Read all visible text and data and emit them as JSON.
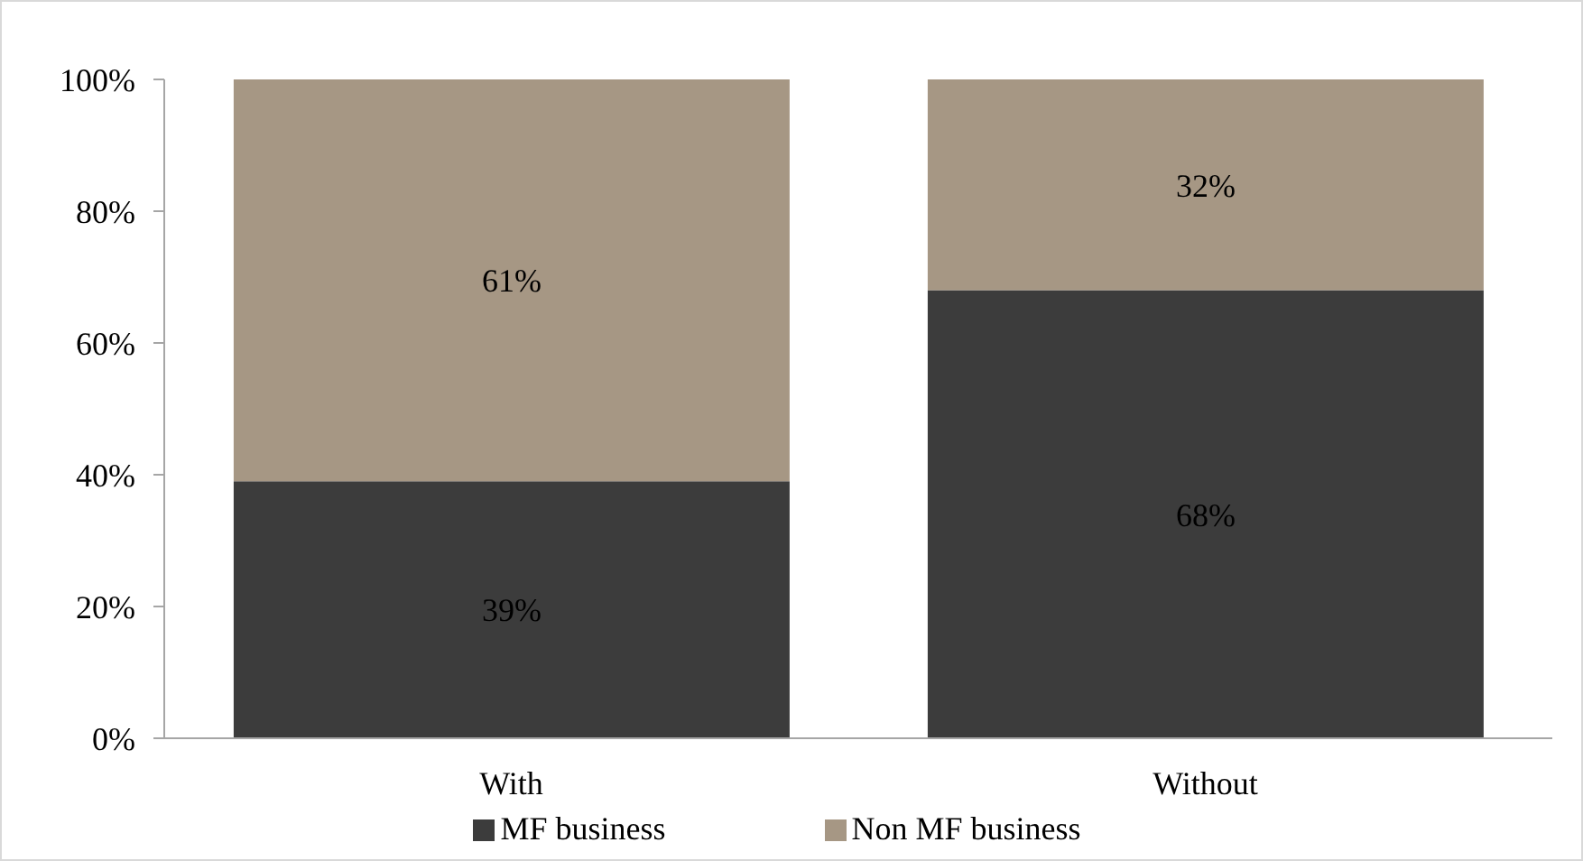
{
  "chart_data": {
    "type": "bar",
    "stacked": true,
    "categories": [
      "With",
      "Without"
    ],
    "series": [
      {
        "name": "MF business",
        "color": "#3c3c3c",
        "values": [
          39,
          68
        ],
        "value_labels": [
          "39%",
          "68%"
        ]
      },
      {
        "name": "Non MF business",
        "color": "#a69784",
        "values": [
          61,
          32
        ],
        "value_labels": [
          "61%",
          "32%"
        ]
      }
    ],
    "ylim": [
      0,
      100
    ],
    "yticks": [
      {
        "value": 0,
        "label": "0%"
      },
      {
        "value": 20,
        "label": "20%"
      },
      {
        "value": 40,
        "label": "40%"
      },
      {
        "value": 60,
        "label": "60%"
      },
      {
        "value": 80,
        "label": "80%"
      },
      {
        "value": 100,
        "label": "100%"
      }
    ],
    "legend": "bottom"
  }
}
